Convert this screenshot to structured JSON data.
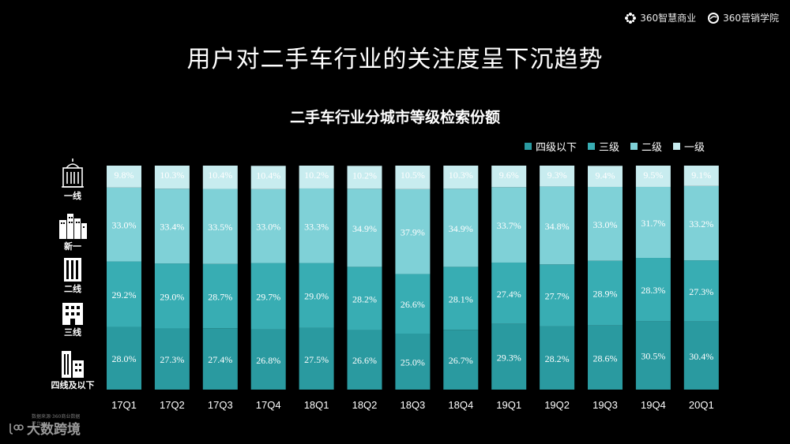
{
  "header": {
    "logo_left": "360智慧商业",
    "logo_right": "360营销学院"
  },
  "title": "用户对二手车行业的关注度呈下沉趋势",
  "tiers": [
    "一线",
    "新一",
    "二线",
    "三线",
    "四线及以下"
  ],
  "watermark": {
    "main": "大数跨境",
    "sub": "数据来源·360商业数据平台"
  },
  "colors": {
    "t4": "#2a9aa0",
    "t3": "#38adb3",
    "t2": "#7fd1d7",
    "t1": "#c8ecef"
  },
  "chart_data": {
    "type": "bar",
    "stacked": true,
    "title": "二手车行业分城市等级检索份额",
    "categories": [
      "17Q1",
      "17Q2",
      "17Q3",
      "17Q4",
      "18Q1",
      "18Q2",
      "18Q3",
      "18Q4",
      "19Q1",
      "19Q2",
      "19Q3",
      "19Q4",
      "20Q1"
    ],
    "series": [
      {
        "name": "四级以下",
        "key": "t4",
        "values": [
          28.0,
          27.3,
          27.4,
          26.8,
          27.5,
          26.6,
          25.0,
          26.7,
          29.3,
          28.2,
          28.6,
          30.5,
          30.4
        ],
        "labels": [
          "28.0%",
          "27.3%",
          "27.4%",
          "26.8%",
          "27.5%",
          "26.6%",
          "25.0%",
          "26.7%",
          "29.3%",
          "28.2%",
          "28.6%",
          "30.5%",
          "30.4%"
        ]
      },
      {
        "name": "三级",
        "key": "t3",
        "values": [
          29.2,
          29.0,
          28.7,
          29.7,
          29.0,
          28.2,
          26.6,
          28.1,
          27.4,
          27.7,
          28.9,
          28.3,
          27.3
        ],
        "labels": [
          "29.2%",
          "29.0%",
          "28.7%",
          "29.7%",
          "29.0%",
          "28.2%",
          "26.6%",
          "28.1%",
          "27.4%",
          "27.7%",
          "28.9%",
          "28.3%",
          "27.3%"
        ]
      },
      {
        "name": "二级",
        "key": "t2",
        "values": [
          33.0,
          33.4,
          33.5,
          33.0,
          33.3,
          34.9,
          37.9,
          34.9,
          33.7,
          34.8,
          33.0,
          31.7,
          33.2
        ],
        "labels": [
          "33.0%",
          "33.4%",
          "33.5%",
          "33.0%",
          "33.3%",
          "34.9%",
          "37.9%",
          "34.9%",
          "33.7%",
          "34.8%",
          "33.0%",
          "31.7%",
          "33.2%"
        ]
      },
      {
        "name": "一级",
        "key": "t1",
        "values": [
          9.8,
          10.3,
          10.4,
          10.4,
          10.2,
          10.2,
          10.5,
          10.3,
          9.6,
          9.3,
          9.4,
          9.5,
          9.1
        ],
        "labels": [
          "9.8%",
          "10.3%",
          "10.4%",
          "10.4%",
          "10.2%",
          "10.2%",
          "10.5%",
          "10.3%",
          "9.6%",
          "9.3%",
          "9.4%",
          "9.5%",
          "9.1%"
        ]
      }
    ],
    "legend_order": [
      "四级以下",
      "三级",
      "二级",
      "一级"
    ],
    "legend_position": "top-right",
    "ylim": [
      0,
      100
    ],
    "grid": false
  }
}
